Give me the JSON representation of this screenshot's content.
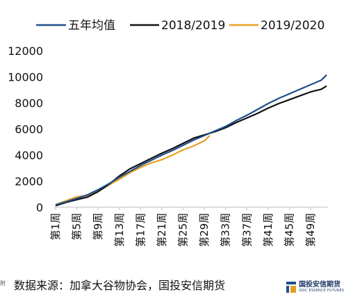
{
  "chart_data": {
    "type": "line",
    "title": "",
    "xlabel": "",
    "ylabel": "",
    "ylim": [
      0,
      12000
    ],
    "yticks": [
      0,
      2000,
      4000,
      6000,
      8000,
      10000,
      12000
    ],
    "grid": false,
    "legend_position": "top",
    "x_tick_labels": [
      "第1周",
      "第5周",
      "第9周",
      "第13周",
      "第17周",
      "第21周",
      "第25周",
      "第29周",
      "第33周",
      "第37周",
      "第41周",
      "第45周",
      "第49周"
    ],
    "x_tick_weeks": [
      1,
      5,
      9,
      13,
      17,
      21,
      25,
      29,
      33,
      37,
      41,
      45,
      49
    ],
    "series": [
      {
        "name": "五年均值",
        "color": "#1f4e8c",
        "weeks": [
          1,
          3,
          5,
          7,
          9,
          11,
          13,
          15,
          17,
          19,
          21,
          23,
          25,
          27,
          29,
          31,
          33,
          35,
          37,
          39,
          41,
          43,
          45,
          47,
          49,
          51,
          52
        ],
        "values": [
          180,
          420,
          680,
          950,
          1350,
          1800,
          2300,
          2750,
          3200,
          3600,
          4000,
          4350,
          4750,
          5150,
          5500,
          5850,
          6200,
          6650,
          7050,
          7500,
          7950,
          8350,
          8700,
          9050,
          9400,
          9750,
          10150
        ]
      },
      {
        "name": "2018/2019",
        "color": "#111111",
        "weeks": [
          1,
          3,
          5,
          7,
          9,
          11,
          13,
          15,
          17,
          19,
          21,
          23,
          25,
          27,
          29,
          31,
          33,
          35,
          37,
          39,
          41,
          43,
          45,
          47,
          49,
          51,
          52
        ],
        "values": [
          120,
          380,
          580,
          780,
          1200,
          1750,
          2400,
          2950,
          3350,
          3750,
          4150,
          4500,
          4900,
          5300,
          5550,
          5800,
          6100,
          6500,
          6850,
          7200,
          7600,
          7950,
          8250,
          8550,
          8850,
          9050,
          9300
        ]
      },
      {
        "name": "2019/2020",
        "color": "#e8a020",
        "weeks": [
          1,
          3,
          5,
          7,
          9,
          11,
          13,
          15,
          17,
          19,
          21,
          23,
          25,
          27,
          29,
          30
        ],
        "values": [
          200,
          500,
          800,
          900,
          1200,
          1700,
          2150,
          2650,
          3050,
          3400,
          3650,
          4000,
          4400,
          4700,
          5100,
          5500
        ]
      }
    ]
  },
  "source_text": "数据来源：加拿大谷物协会，国投安信期货",
  "edge_text": "附",
  "logo": {
    "name": "国投安信期货",
    "subtitle": "SDIC ESSENCE FUTURES"
  }
}
